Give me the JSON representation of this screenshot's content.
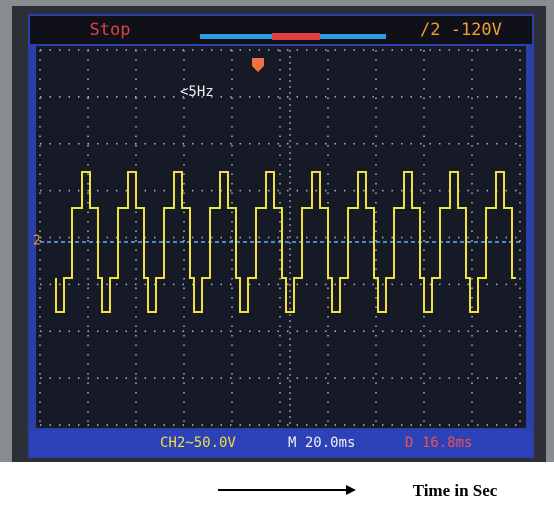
{
  "screen": {
    "status": "Stop",
    "trigger": "/2 -120V",
    "frequency": "<5Hz",
    "channel_marker": "2"
  },
  "footer": {
    "channel": "CH2~50.0V",
    "timebase": "M 20.0ms",
    "delta": "D 16.8ms"
  },
  "caption": "Time in Sec"
}
